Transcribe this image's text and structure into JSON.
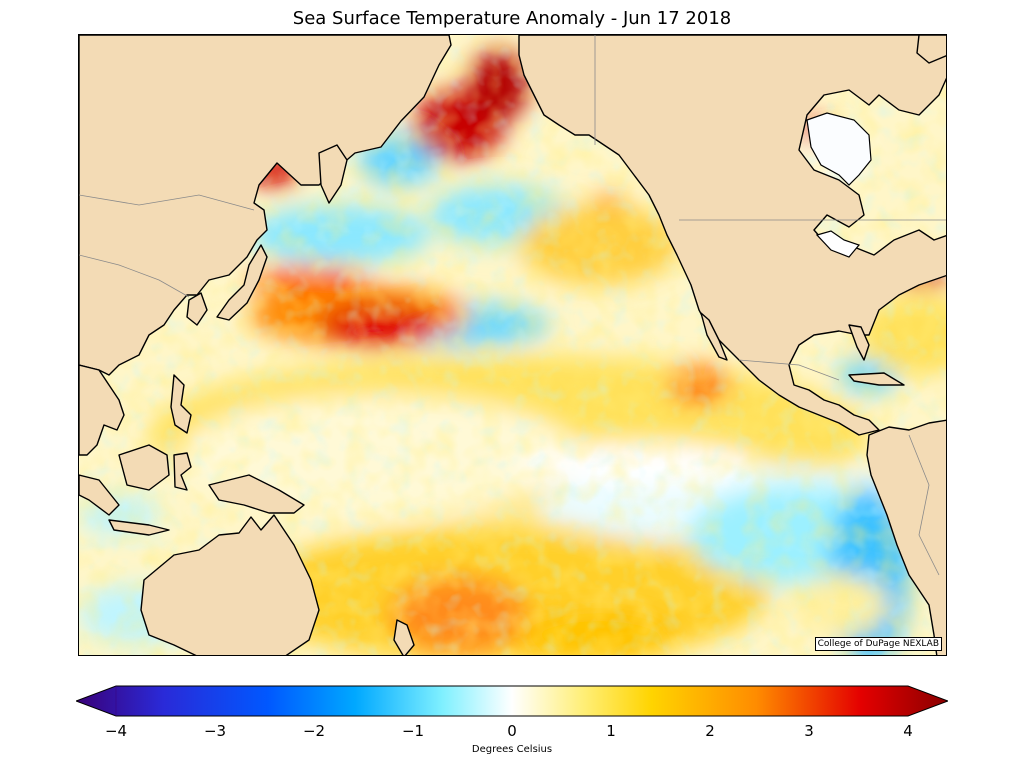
{
  "title": "Sea Surface Temperature Anomaly - Jun 17 2018",
  "credit": "College of DuPage NEXLAB",
  "colorbar": {
    "label": "Degrees Celsius",
    "min": -4,
    "max": 4,
    "extend": "both",
    "ticks": [
      "−4",
      "−3",
      "−2",
      "−1",
      "0",
      "1",
      "2",
      "3",
      "4"
    ],
    "colors": [
      "#3a0078",
      "#2a2ad8",
      "#0058ff",
      "#00a8ff",
      "#7ff0ff",
      "#ffffff",
      "#ffef7a",
      "#ffd400",
      "#ff8c00",
      "#e40000",
      "#8a0000"
    ]
  },
  "map": {
    "region": "Pacific Ocean",
    "land_color": "#f3dbb5",
    "ocean_neutral_color": "#ffffff"
  }
}
